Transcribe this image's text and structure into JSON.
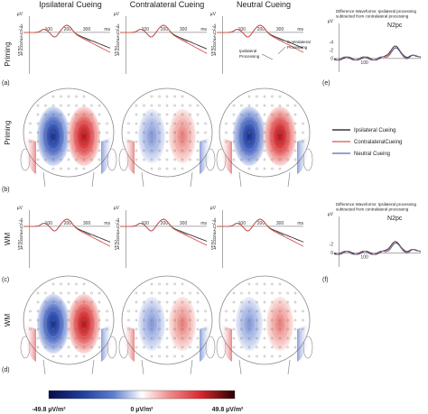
{
  "columns": [
    "Ipsilateral Cueing",
    "Contralateral Cueing",
    "Neutral Cueing"
  ],
  "rows": [
    "Priming",
    "WM"
  ],
  "panels": {
    "a": "(a)",
    "b": "(b)",
    "c": "(c)",
    "d": "(d)",
    "e": "(e)",
    "f": "(f)"
  },
  "waveform_axis": {
    "unit": "µV",
    "yticks": [
      "-4",
      "-2",
      "0",
      "2",
      "4",
      "6",
      "8",
      "10",
      "12",
      "14"
    ],
    "xticks": [
      "100",
      "200",
      "300"
    ],
    "xunit": "ms"
  },
  "annotations": {
    "ipsilateral": "Ipsilateral\nProcessing",
    "contralateral": "Contralateral\nProcessing"
  },
  "difference": {
    "title": "Difference Waveforms: Ipsilateral processing\nsubtracted from contralateral processing",
    "component": "N2pc",
    "unit": "µV",
    "yticks_e": [
      "-4",
      "-2",
      "0"
    ],
    "yticks_f": [
      "-2",
      "0"
    ],
    "xticks": [
      "100"
    ]
  },
  "legend": [
    {
      "label": "Ipsilateral Cueing",
      "color": "#111111"
    },
    {
      "label": "ContralateralCueing",
      "color": "#d9534f"
    },
    {
      "label": "Neutral Cueing",
      "color": "#4a6fb5"
    }
  ],
  "colorbar": {
    "min_label": "-49.8 µV/m²",
    "mid_label": "0 µV/m²",
    "max_label": "49.8 µV/m²",
    "colors": [
      "#0a0a4a",
      "#1f3d9c",
      "#5b7fd1",
      "#ffffff",
      "#f08a8a",
      "#d7262b",
      "#2a0000"
    ]
  },
  "colors": {
    "ipsi": "#333333",
    "contra": "#d9534f",
    "diff_fill": "#b0b0b0",
    "blue_map": "#2e4fb5",
    "red_map": "#d7262b"
  }
}
